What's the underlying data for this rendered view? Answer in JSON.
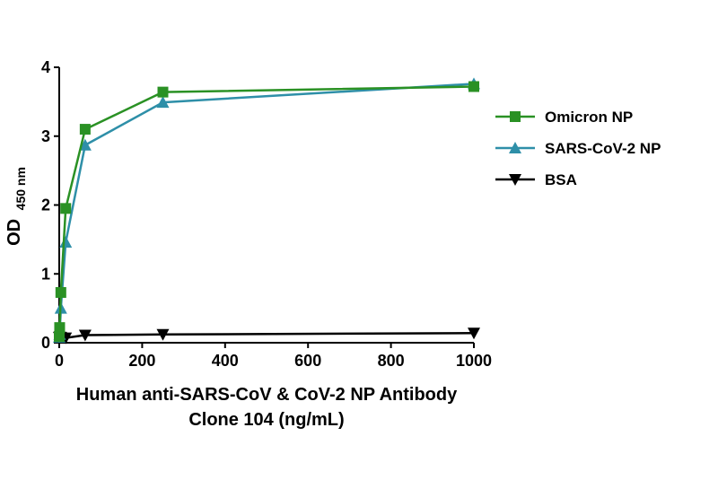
{
  "chart_data": {
    "type": "line",
    "ylabel": "OD",
    "ylabel_sub": "450 nm",
    "xlabel_line1": "Human anti-SARS-CoV & CoV-2 NP Antibody",
    "xlabel_line2": "Clone 104 (ng/mL)",
    "xlim": [
      0,
      1000
    ],
    "ylim": [
      0,
      4
    ],
    "xticks": [
      0,
      200,
      400,
      600,
      800,
      1000
    ],
    "yticks": [
      0,
      1,
      2,
      3,
      4
    ],
    "x": [
      0,
      1,
      3.9,
      15.6,
      62.5,
      250,
      1000
    ],
    "legend_position": "right",
    "grid": false,
    "series": [
      {
        "name": "Omicron NP",
        "color": "#2a9124",
        "marker": "square",
        "values": [
          0.09,
          0.22,
          0.73,
          1.95,
          3.1,
          3.64,
          3.72
        ]
      },
      {
        "name": "SARS-CoV-2 NP",
        "color": "#2e8fa8",
        "marker": "triangle-up",
        "values": [
          0.08,
          0.12,
          0.5,
          1.46,
          2.87,
          3.49,
          3.76
        ]
      },
      {
        "name": "BSA",
        "color": "#000000",
        "marker": "triangle-down",
        "values": [
          0.08,
          0.08,
          0.08,
          0.07,
          0.11,
          0.12,
          0.14
        ]
      }
    ]
  }
}
